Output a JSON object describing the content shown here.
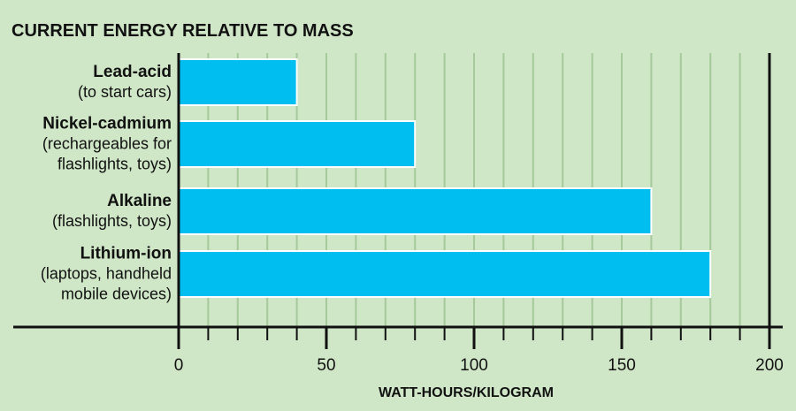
{
  "chart_data": {
    "type": "bar",
    "orientation": "horizontal",
    "title": "CURRENT ENERGY RELATIVE TO MASS",
    "xlabel": "WATT-HOURS/KILOGRAM",
    "ylabel": "",
    "xlim": [
      0,
      200
    ],
    "x_ticks": [
      0,
      50,
      100,
      150,
      200
    ],
    "minor_tick_step": 10,
    "grid": "vertical",
    "categories": [
      {
        "name": "Lead-acid",
        "note_lines": [
          "(to start cars)"
        ],
        "value": 40
      },
      {
        "name": "Nickel-cadmium",
        "note_lines": [
          "(rechargeables for",
          "flashlights, toys)"
        ],
        "value": 80
      },
      {
        "name": "Alkaline",
        "note_lines": [
          "(flashlights, toys)"
        ],
        "value": 160
      },
      {
        "name": "Lithium-ion",
        "note_lines": [
          "(laptops, handheld",
          "mobile devices)"
        ],
        "value": 180
      }
    ],
    "colors": {
      "background": "#cfe6c7",
      "bar": "#00bff0",
      "bar_stroke": "#ffffff",
      "grid": "#a6c99b",
      "axis": "#111111",
      "text": "#111111"
    }
  }
}
